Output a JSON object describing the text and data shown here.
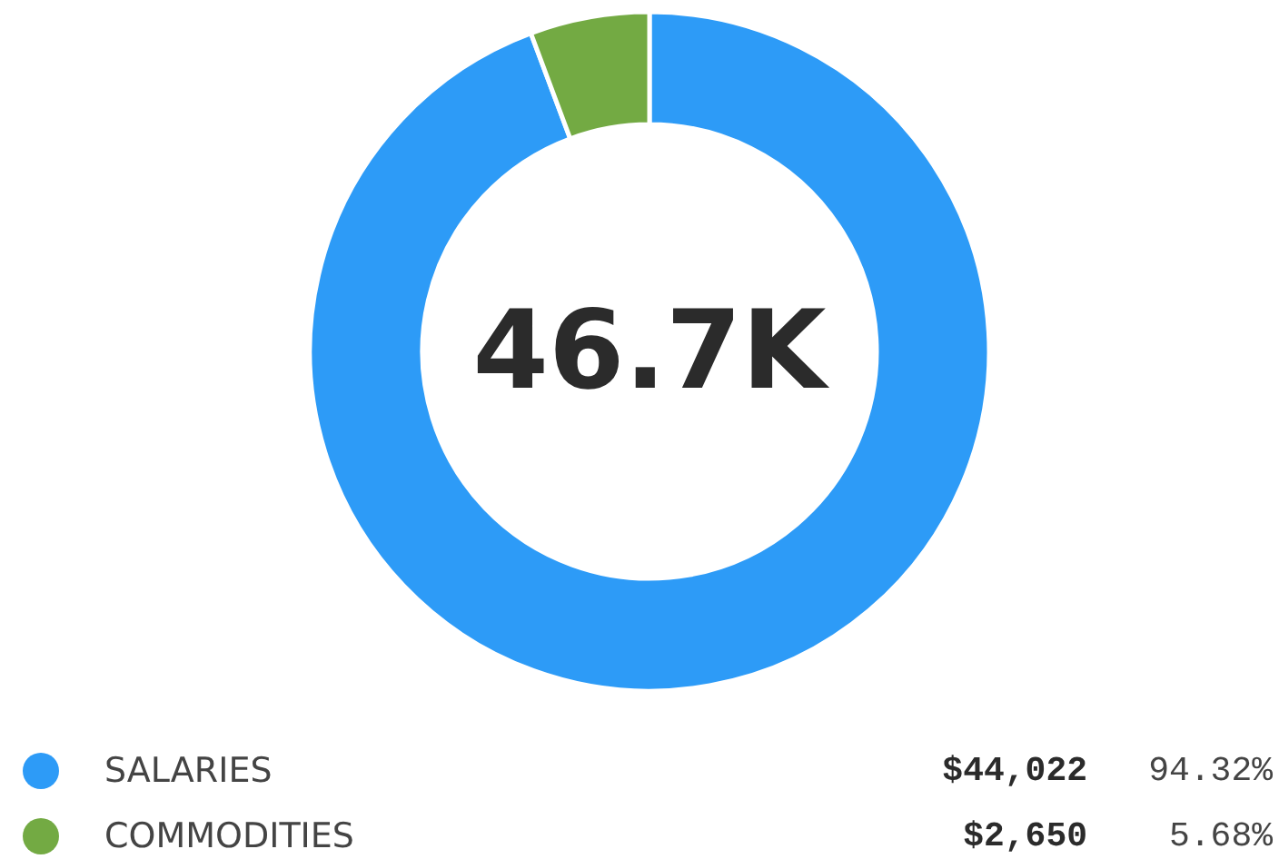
{
  "chart_data": {
    "type": "donut",
    "categories": [
      "SALARIES",
      "COMMODITIES"
    ],
    "values": [
      44022,
      2650
    ],
    "colors": [
      "#2d9bf7",
      "#73aa43"
    ],
    "value_labels": [
      "$44,022",
      "$2,650"
    ],
    "annotations": [
      "46.7K",
      "94.32%",
      "5.68%"
    ],
    "legend": "bottom"
  }
}
